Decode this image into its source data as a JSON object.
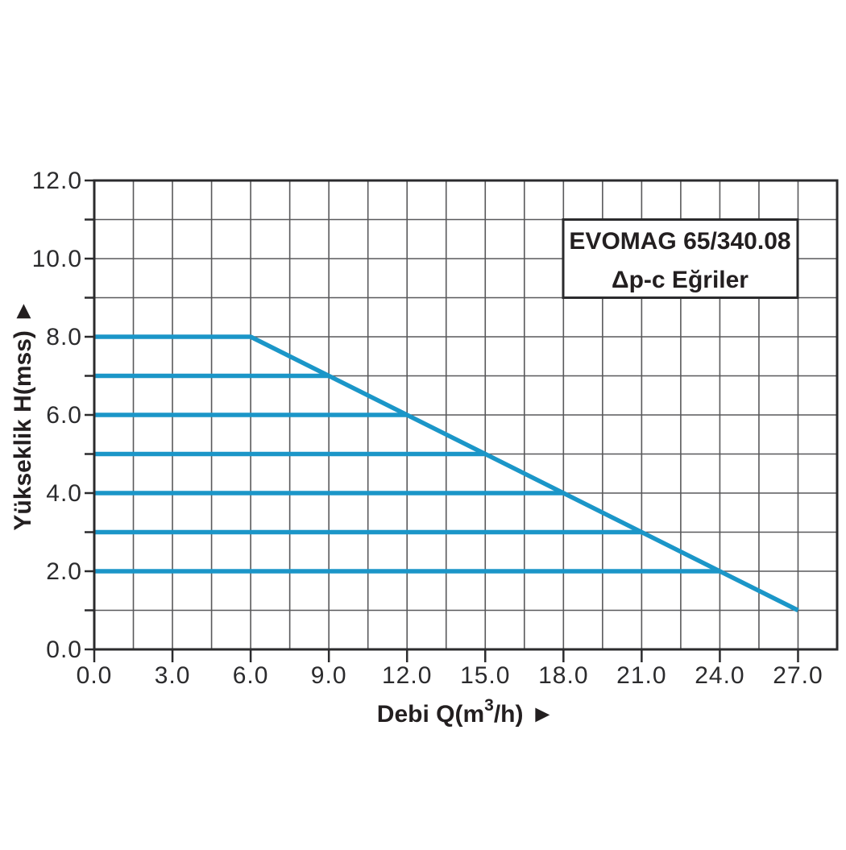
{
  "legend_box": {
    "line1": "EVOMAG 65/340.08",
    "line2": "Δp-c Eğriler"
  },
  "axes": {
    "x_title": {
      "pre": "Debi Q(m",
      "sup": "3",
      "post": "/h)",
      "arrow": "►"
    },
    "y_title": {
      "text": "Yükseklik H(mss)",
      "arrow": "►"
    }
  },
  "chart_data": {
    "type": "line",
    "title": "EVOMAG 65/340.08",
    "subtitle": "Δp-c Eğriler",
    "xlabel": "Debi Q(m3/h)",
    "ylabel": "Yükseklik H(mss)",
    "xlim": [
      0,
      28.5
    ],
    "ylim": [
      0,
      12
    ],
    "grid": true,
    "x_grid_step": 1.5,
    "y_grid_step": 1,
    "x_tick_values": [
      0,
      3,
      6,
      9,
      12,
      15,
      18,
      21,
      24,
      27
    ],
    "x_tick_labels": [
      "0.0",
      "3.0",
      "6.0",
      "9.0",
      "12.0",
      "15.0",
      "18.0",
      "21.0",
      "24.0",
      "27.0"
    ],
    "y_tick_values": [
      0,
      1,
      2,
      3,
      4,
      5,
      6,
      7,
      8,
      9,
      10,
      11,
      12
    ],
    "y_labeled_tick_values": [
      0,
      2,
      4,
      6,
      8,
      10,
      12
    ],
    "y_tick_labels": [
      "0.0",
      "2.0",
      "4.0",
      "6.0",
      "8.0",
      "10.0",
      "12.0"
    ],
    "legend_position": "top-right-inside",
    "series": [
      {
        "name": "max-speed-curve",
        "points": [
          [
            0,
            8
          ],
          [
            6,
            8
          ],
          [
            27,
            1
          ]
        ]
      },
      {
        "name": "dpc-setpoint-7mss",
        "points": [
          [
            0,
            7
          ],
          [
            9,
            7
          ]
        ]
      },
      {
        "name": "dpc-setpoint-6mss",
        "points": [
          [
            0,
            6
          ],
          [
            12,
            6
          ]
        ]
      },
      {
        "name": "dpc-setpoint-5mss",
        "points": [
          [
            0,
            5
          ],
          [
            15,
            5
          ]
        ]
      },
      {
        "name": "dpc-setpoint-4mss",
        "points": [
          [
            0,
            4
          ],
          [
            18,
            4
          ]
        ]
      },
      {
        "name": "dpc-setpoint-3mss",
        "points": [
          [
            0,
            3
          ],
          [
            21,
            3
          ]
        ]
      },
      {
        "name": "dpc-setpoint-2mss",
        "points": [
          [
            0,
            2
          ],
          [
            24,
            2
          ]
        ]
      }
    ],
    "colors": {
      "curve": "#1b96c8",
      "grid": "#59595b",
      "axis": "#2b2b2d",
      "text": "#231f20"
    }
  }
}
